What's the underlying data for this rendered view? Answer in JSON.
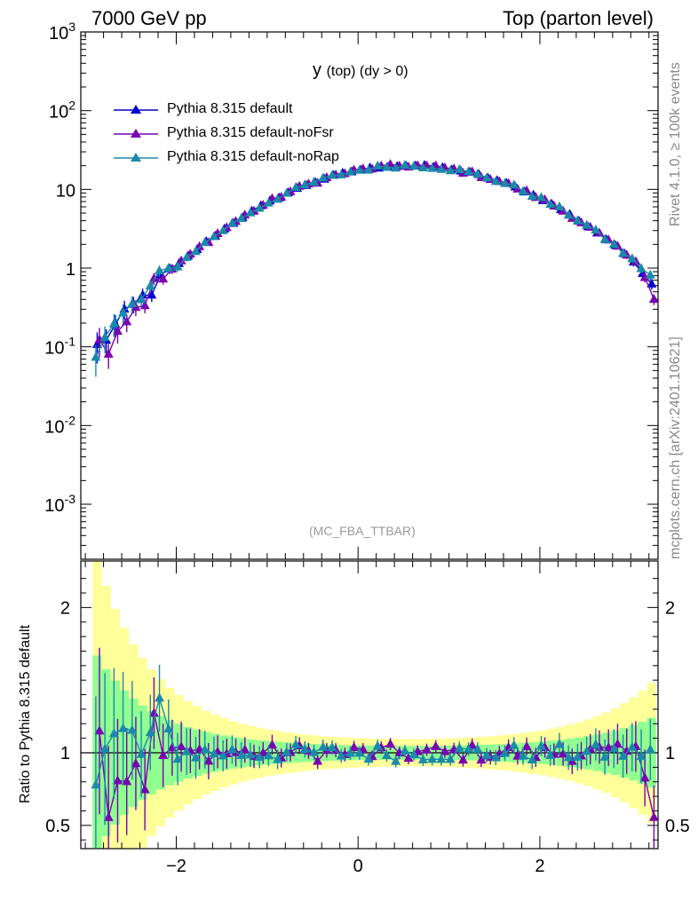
{
  "header": {
    "left": "7000 GeV pp",
    "right": "Top (parton level)"
  },
  "side_labels": {
    "top": "Rivet 4.1.0, ≥ 100k events",
    "bottom": "mcplots.cern.ch [arXiv:2401.10621]"
  },
  "plot_title": {
    "main": "y",
    "detail": "(top) (dy > 0)"
  },
  "analysis": "(MC_FBA_TTBAR)",
  "ratio_ylabel": "Ratio to Pythia 8.315 default",
  "colors": {
    "default": "#0000cc",
    "noFsr": "#7a00b0",
    "noRap": "#1a8aaa",
    "band_green": "#90ff90",
    "band_yellow": "#ffff99"
  },
  "chart_data": [
    {
      "type": "line",
      "role": "main",
      "yscale": "log",
      "xlim": [
        -3.05,
        3.3
      ],
      "ylim": [
        0.0002,
        1000
      ],
      "yticks": [
        0.001,
        0.01,
        0.1,
        1,
        10,
        100,
        1000
      ],
      "ytick_labels": [
        {
          "base": "10",
          "exp": "-3"
        },
        {
          "base": "10",
          "exp": "-2"
        },
        {
          "base": "10",
          "exp": "-1"
        },
        {
          "base": "1",
          "exp": ""
        },
        {
          "base": "10",
          "exp": ""
        },
        {
          "base": "10",
          "exp": "2"
        },
        {
          "base": "10",
          "exp": "3"
        }
      ],
      "legend_position": "top-left",
      "series": [
        {
          "name": "Pythia 8.315 default",
          "color_key": "default"
        },
        {
          "name": "Pythia 8.315 default-noFsr",
          "color_key": "noFsr"
        },
        {
          "name": "Pythia 8.315 default-noRap",
          "color_key": "noRap"
        }
      ],
      "model": {
        "form": "gaussian",
        "center": 0.55,
        "sigma": 1.05,
        "peak": 20,
        "x_from": -2.87,
        "x_to": 3.27,
        "bin_width": 0.1
      }
    },
    {
      "type": "line",
      "role": "ratio",
      "yscale": "linear",
      "xlim": [
        -3.05,
        3.3
      ],
      "ylim": [
        0.34,
        2.32
      ],
      "yticks": [
        0.5,
        1,
        2
      ],
      "ytick_labels": [
        "0.5",
        "1",
        "2"
      ],
      "xticks": [
        -2,
        0,
        2
      ],
      "xtick_labels": [
        "−2",
        "0",
        "2"
      ],
      "reference": 1,
      "ylabel": "Ratio to Pythia 8.315 default"
    }
  ]
}
